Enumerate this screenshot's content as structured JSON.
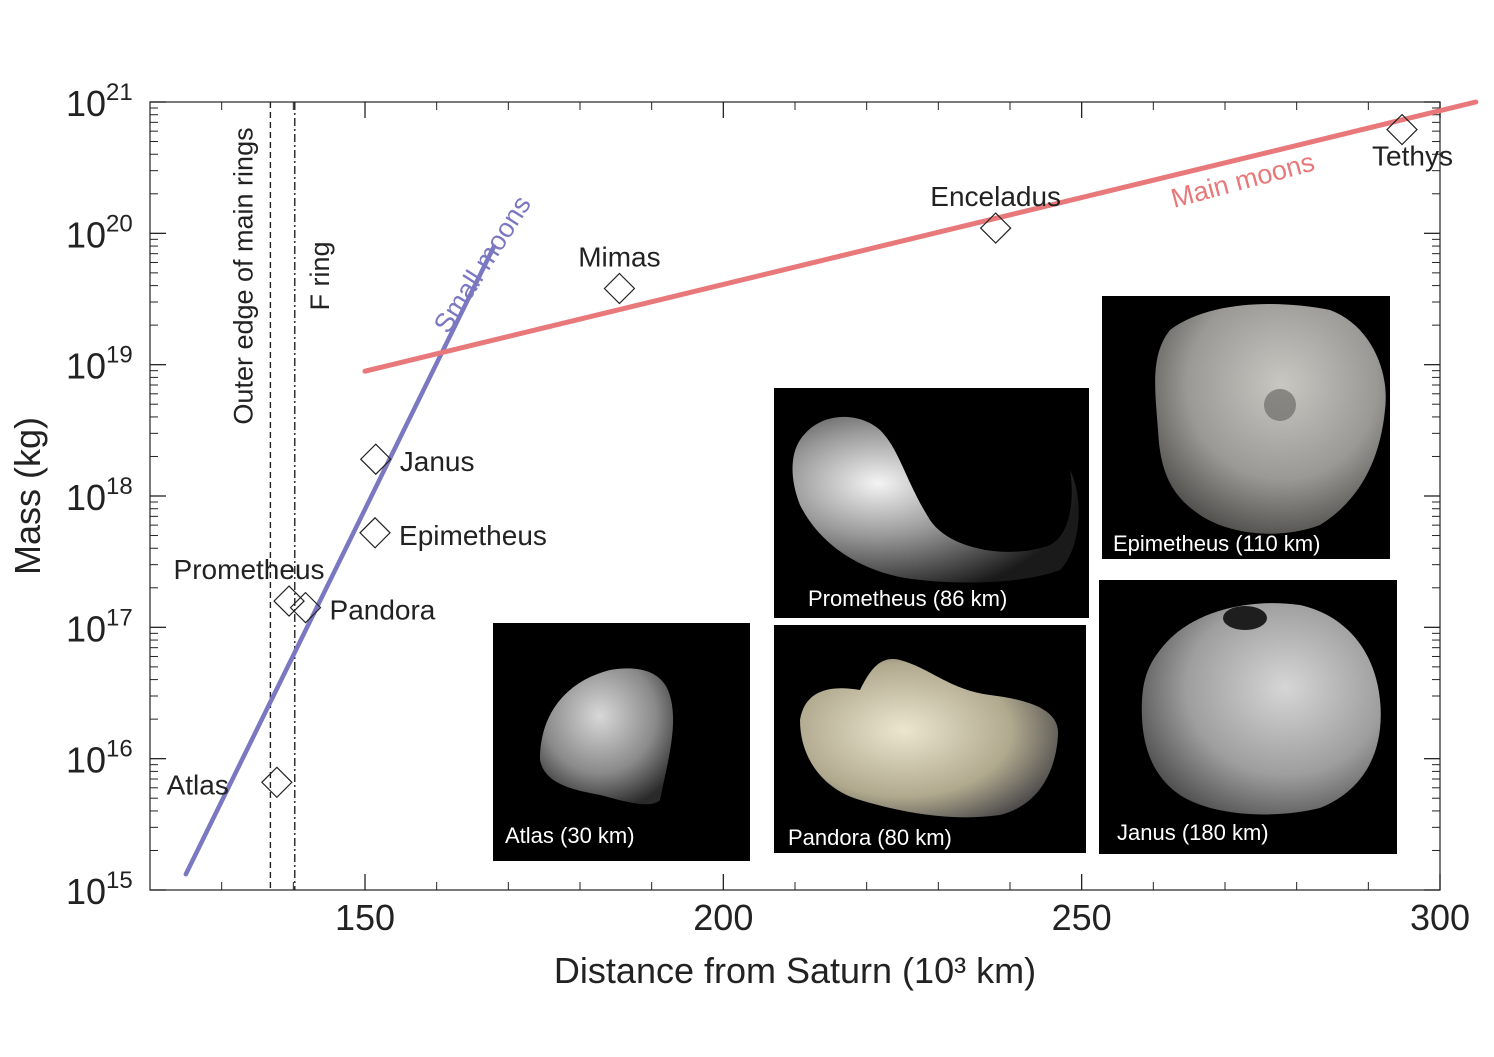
{
  "chart_data": {
    "type": "scatter",
    "xlabel": "Distance from Saturn (10³ km)",
    "ylabel": "Mass (kg)",
    "xlim": [
      120,
      300
    ],
    "ylim_log10": [
      15,
      21
    ],
    "y_scale": "log",
    "x_ticks": [
      150,
      200,
      250,
      300
    ],
    "y_ticks": [
      {
        "exp": 15,
        "base": "10",
        "sup": "15"
      },
      {
        "exp": 16,
        "base": "10",
        "sup": "16"
      },
      {
        "exp": 17,
        "base": "10",
        "sup": "17"
      },
      {
        "exp": 18,
        "base": "10",
        "sup": "18"
      },
      {
        "exp": 19,
        "base": "10",
        "sup": "19"
      },
      {
        "exp": 20,
        "base": "10",
        "sup": "20"
      },
      {
        "exp": 21,
        "base": "10",
        "sup": "21"
      }
    ],
    "points": [
      {
        "name": "Atlas",
        "x": 137.7,
        "mass": "6.6e15",
        "log10_mass": 15.82,
        "label_side": "left"
      },
      {
        "name": "Prometheus",
        "x": 139.4,
        "mass": "1.6e17",
        "log10_mass": 17.2,
        "label_side": "above-left"
      },
      {
        "name": "Pandora",
        "x": 141.7,
        "mass": "1.4e17",
        "log10_mass": 17.15,
        "label_side": "right"
      },
      {
        "name": "Epimetheus",
        "x": 151.4,
        "mass": "5.3e17",
        "log10_mass": 17.72,
        "label_side": "right"
      },
      {
        "name": "Janus",
        "x": 151.5,
        "mass": "1.9e18",
        "log10_mass": 18.28,
        "label_side": "right"
      },
      {
        "name": "Mimas",
        "x": 185.5,
        "mass": "3.8e19",
        "log10_mass": 19.58,
        "label_side": "above"
      },
      {
        "name": "Enceladus",
        "x": 238.0,
        "mass": "1.1e20",
        "log10_mass": 20.04,
        "label_side": "above"
      },
      {
        "name": "Tethys",
        "x": 294.7,
        "mass": "6.2e20",
        "log10_mass": 20.79,
        "label_side": "below"
      }
    ],
    "lines": [
      {
        "name": "Small moons",
        "color": "#7b78c2",
        "from": {
          "x": 125,
          "log10_mass": 15.12
        },
        "to": {
          "x": 168,
          "log10_mass": 19.9
        }
      },
      {
        "name": "Main moons",
        "color": "#e8787a",
        "from": {
          "x": 150,
          "log10_mass": 18.95
        },
        "to": {
          "x": 305,
          "log10_mass": 21.0
        }
      }
    ],
    "vlines": [
      {
        "name": "Outer edge of main rings",
        "x": 136.8,
        "style": "dashed"
      },
      {
        "name": "F ring",
        "x": 140.2,
        "style": "dash-dot"
      }
    ],
    "image_panels": [
      {
        "name": "atlas",
        "label": "Atlas (30 km)"
      },
      {
        "name": "prometheus",
        "label": "Prometheus (86 km)"
      },
      {
        "name": "pandora",
        "label": "Pandora (80 km)"
      },
      {
        "name": "epimetheus",
        "label": "Epimetheus (110 km)"
      },
      {
        "name": "janus",
        "label": "Janus (180 km)"
      }
    ]
  }
}
